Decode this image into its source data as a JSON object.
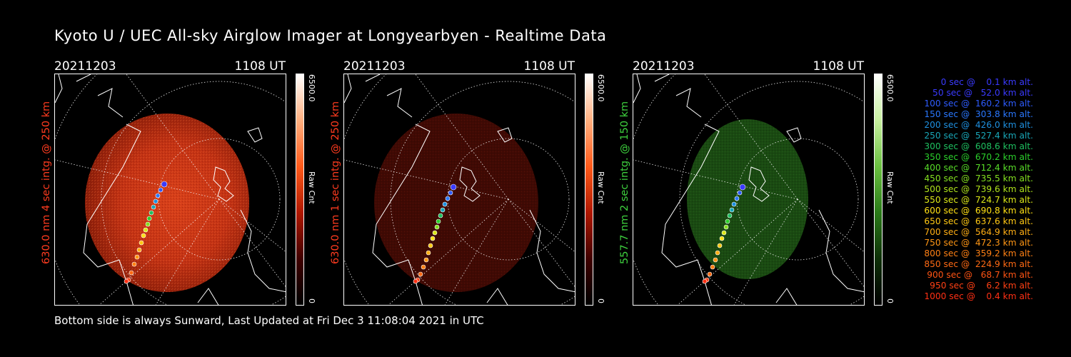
{
  "title": "Kyoto U / UEC All-sky Airglow Imager at Longyearbyen - Realtime Data",
  "footer": "Bottom side is always Sunward, Last Updated at Fri Dec  3 11:08:04 2021 in UTC",
  "panels": [
    {
      "date": "20211203",
      "time": "1108 UT",
      "side_label": "630.0 nm 4 sec intg. @ 250 km",
      "label_color": "#ff3b1f",
      "cbar_max": "6500.0",
      "cbar_unit": "Raw Cnt",
      "cbar_min": "0",
      "cbar_gradient": [
        "#ffffff",
        "#ffb080",
        "#ff5a1a",
        "#b01800",
        "#400000",
        "#000000"
      ]
    },
    {
      "date": "20211203",
      "time": "1108 UT",
      "side_label": "630.0 nm 1 sec intg. @ 250 km",
      "label_color": "#ff3b1f",
      "cbar_max": "6500.0",
      "cbar_unit": "Raw Cnt",
      "cbar_min": "0",
      "cbar_gradient": [
        "#ffffff",
        "#ffb080",
        "#ff5a1a",
        "#b01800",
        "#400000",
        "#000000"
      ]
    },
    {
      "date": "20211203",
      "time": "1108 UT",
      "side_label": "557.7 nm 2 sec intg. @ 150 km",
      "label_color": "#3ed13e",
      "cbar_max": "6500.0",
      "cbar_unit": "Raw Cnt",
      "cbar_min": "0",
      "cbar_gradient": [
        "#ffffff",
        "#c8f0a0",
        "#6ac040",
        "#2a7a18",
        "#0e3008",
        "#000000"
      ]
    }
  ],
  "legend": [
    {
      "text": "   0 sec @    0.1 km alt.",
      "color": "#3a3aff"
    },
    {
      "text": "  50 sec @   52.0 km alt.",
      "color": "#3a3aff"
    },
    {
      "text": " 100 sec @  160.2 km alt.",
      "color": "#2e5cff"
    },
    {
      "text": " 150 sec @  303.8 km alt.",
      "color": "#2a78ff"
    },
    {
      "text": " 200 sec @  426.0 km alt.",
      "color": "#1e90e0"
    },
    {
      "text": " 250 sec @  527.4 km alt.",
      "color": "#19a7b8"
    },
    {
      "text": " 300 sec @  608.6 km alt.",
      "color": "#1ec060"
    },
    {
      "text": " 350 sec @  670.2 km alt.",
      "color": "#2bd02b"
    },
    {
      "text": " 400 sec @  712.4 km alt.",
      "color": "#58dc28"
    },
    {
      "text": " 450 sec @  735.5 km alt.",
      "color": "#84e020"
    },
    {
      "text": " 500 sec @  739.6 km alt.",
      "color": "#b0e41c"
    },
    {
      "text": " 550 sec @  724.7 km alt.",
      "color": "#dce818"
    },
    {
      "text": " 600 sec @  690.8 km alt.",
      "color": "#ffe014"
    },
    {
      "text": " 650 sec @  637.6 km alt.",
      "color": "#ffc814"
    },
    {
      "text": " 700 sec @  564.9 km alt.",
      "color": "#ffae14"
    },
    {
      "text": " 750 sec @  472.3 km alt.",
      "color": "#ff9614"
    },
    {
      "text": " 800 sec @  359.2 km alt.",
      "color": "#ff8014"
    },
    {
      "text": " 850 sec @  224.9 km alt.",
      "color": "#ff6a14"
    },
    {
      "text": " 900 sec @   68.7 km alt.",
      "color": "#ff5414"
    },
    {
      "text": " 950 sec @    6.2 km alt.",
      "color": "#ff4014"
    },
    {
      "text": "1000 sec @    0.4 km alt.",
      "color": "#ff3014"
    }
  ]
}
